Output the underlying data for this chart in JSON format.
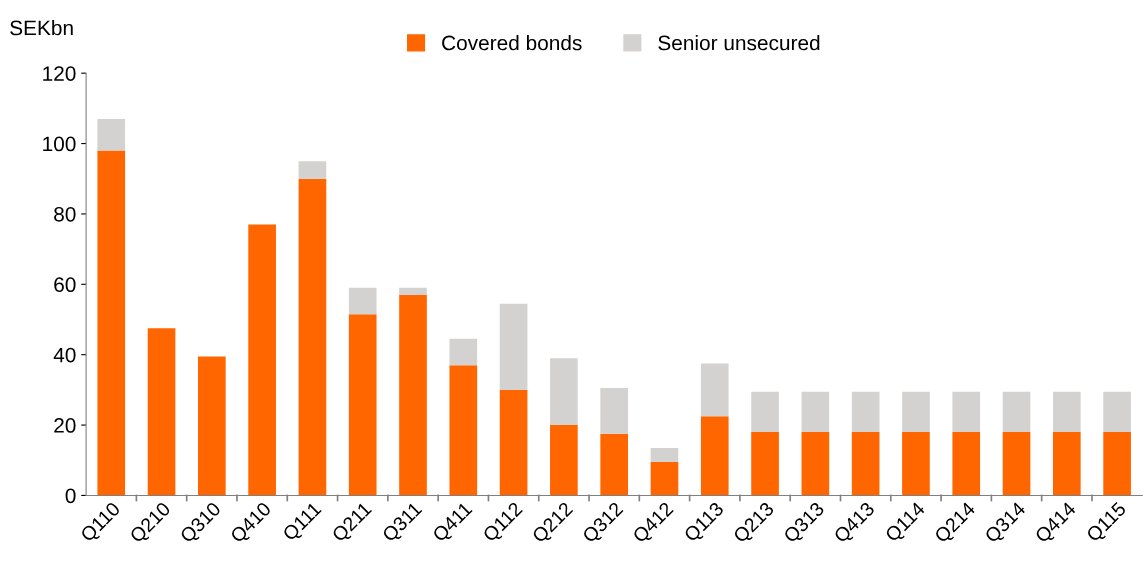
{
  "chart_data": {
    "type": "bar",
    "stacked": true,
    "ylabel": "SEKbn",
    "categories": [
      "Q110",
      "Q210",
      "Q310",
      "Q410",
      "Q111",
      "Q211",
      "Q311",
      "Q411",
      "Q112",
      "Q212",
      "Q312",
      "Q412",
      "Q113",
      "Q213",
      "Q313",
      "Q413",
      "Q114",
      "Q214",
      "Q314",
      "Q414",
      "Q115"
    ],
    "series": [
      {
        "name": "Covered bonds",
        "color": "#ff6600",
        "values": [
          98,
          47.5,
          39.5,
          77,
          90,
          51.5,
          57,
          37,
          30,
          20,
          17.5,
          9.5,
          22.5,
          18,
          18,
          18,
          18,
          18,
          18,
          18,
          18
        ]
      },
      {
        "name": "Senior unsecured",
        "color": "#d3d2d0",
        "values": [
          9,
          0,
          0,
          0,
          5,
          7.5,
          2,
          7.5,
          24.5,
          19,
          13,
          4,
          15,
          11.5,
          11.5,
          11.5,
          11.5,
          11.5,
          11.5,
          11.5,
          11.5
        ]
      }
    ],
    "ylim": [
      0,
      120
    ],
    "yticks": [
      0,
      20,
      40,
      60,
      80,
      100,
      120
    ],
    "legend": "top",
    "grid": false
  }
}
